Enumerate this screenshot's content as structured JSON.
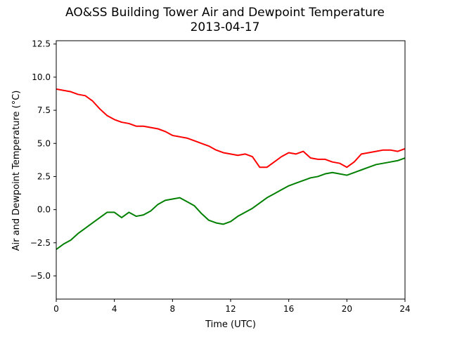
{
  "chart_data": {
    "type": "line",
    "title": "AO&SS Building Tower Air and Dewpoint Temperature",
    "subtitle": "2013-04-17",
    "xlabel": "Time (UTC)",
    "ylabel": "Air and Dewpoint Temperature (°C)",
    "xlim": [
      0,
      24
    ],
    "ylim": [
      -6.75,
      12.75
    ],
    "x_ticks": [
      0,
      4,
      8,
      12,
      16,
      20,
      24
    ],
    "y_ticks": [
      -5.0,
      -2.5,
      0.0,
      2.5,
      5.0,
      7.5,
      10.0,
      12.5
    ],
    "y_tick_labels": [
      "−5.0",
      "−2.5",
      "0.0",
      "2.5",
      "5.0",
      "7.5",
      "10.0",
      "12.5"
    ],
    "grid": false,
    "series": [
      {
        "color": "#ff0000",
        "x": [
          0,
          0.5,
          1,
          1.5,
          2,
          2.5,
          3,
          3.5,
          4,
          4.5,
          5,
          5.5,
          6,
          6.5,
          7,
          7.5,
          8,
          8.5,
          9,
          9.5,
          10,
          10.5,
          11,
          11.5,
          12,
          12.5,
          13,
          13.5,
          14,
          14.5,
          15,
          15.5,
          16,
          16.5,
          17,
          17.5,
          18,
          18.5,
          19,
          19.5,
          20,
          20.5,
          21,
          21.5,
          22,
          22.5,
          23,
          23.5,
          24
        ],
        "values": [
          9.1,
          9.0,
          8.9,
          8.7,
          8.6,
          8.2,
          7.6,
          7.1,
          6.8,
          6.6,
          6.5,
          6.3,
          6.3,
          6.2,
          6.1,
          5.9,
          5.6,
          5.5,
          5.4,
          5.2,
          5.0,
          4.8,
          4.5,
          4.3,
          4.2,
          4.1,
          4.2,
          4.0,
          3.2,
          3.2,
          3.6,
          4.0,
          4.3,
          4.2,
          4.4,
          3.9,
          3.8,
          3.8,
          3.6,
          3.5,
          3.2,
          3.6,
          4.2,
          4.3,
          4.4,
          4.5,
          4.5,
          4.4,
          4.6
        ]
      },
      {
        "color": "#008000",
        "x": [
          0,
          0.5,
          1,
          1.5,
          2,
          2.5,
          3,
          3.5,
          4,
          4.5,
          5,
          5.5,
          6,
          6.5,
          7,
          7.5,
          8,
          8.5,
          9,
          9.5,
          10,
          10.5,
          11,
          11.5,
          12,
          12.5,
          13,
          13.5,
          14,
          14.5,
          15,
          15.5,
          16,
          16.5,
          17,
          17.5,
          18,
          18.5,
          19,
          19.5,
          20,
          20.5,
          21,
          21.5,
          22,
          22.5,
          23,
          23.5,
          24
        ],
        "values": [
          -3.0,
          -2.6,
          -2.3,
          -1.8,
          -1.4,
          -1.0,
          -0.6,
          -0.2,
          -0.2,
          -0.6,
          -0.2,
          -0.5,
          -0.4,
          -0.1,
          0.4,
          0.7,
          0.8,
          0.9,
          0.6,
          0.3,
          -0.3,
          -0.8,
          -1.0,
          -1.1,
          -0.9,
          -0.5,
          -0.2,
          0.1,
          0.5,
          0.9,
          1.2,
          1.5,
          1.8,
          2.0,
          2.2,
          2.4,
          2.5,
          2.7,
          2.8,
          2.7,
          2.6,
          2.8,
          3.0,
          3.2,
          3.4,
          3.5,
          3.6,
          3.7,
          3.9
        ]
      }
    ]
  }
}
